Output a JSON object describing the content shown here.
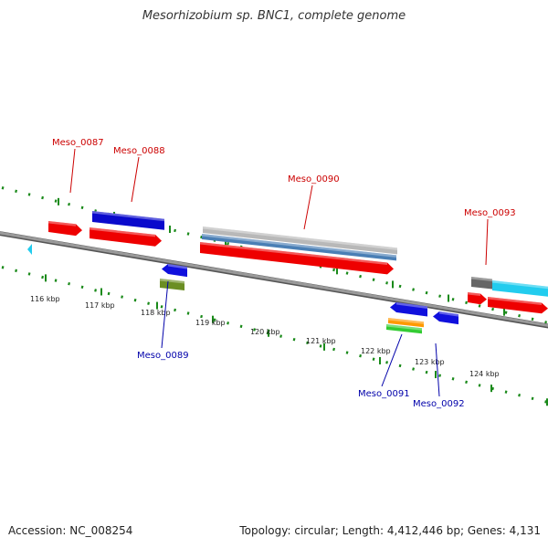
{
  "title": "Mesorhizobium sp. BNC1, complete genome",
  "footer": {
    "accession": "Accession: NC_008254",
    "summary": "Topology: circular; Length: 4,412,446 bp; Genes: 4,131"
  },
  "scale": {
    "unit": "kbp",
    "ticks": [
      "116 kbp",
      "117 kbp",
      "118 kbp",
      "119 kbp",
      "120 kbp",
      "121 kbp",
      "122 kbp",
      "123 kbp",
      "124 kbp"
    ]
  },
  "gene_labels": [
    {
      "name": "Meso_0087",
      "strand": "forward",
      "color": "#cc0000"
    },
    {
      "name": "Meso_0088",
      "strand": "forward",
      "color": "#cc0000"
    },
    {
      "name": "Meso_0090",
      "strand": "forward",
      "color": "#cc0000"
    },
    {
      "name": "Meso_0093",
      "strand": "forward",
      "color": "#cc0000"
    },
    {
      "name": "Meso_0089",
      "strand": "reverse",
      "color": "#0000aa"
    },
    {
      "name": "Meso_0091",
      "strand": "reverse",
      "color": "#0000aa"
    },
    {
      "name": "Meso_0092",
      "strand": "reverse",
      "color": "#0000aa"
    }
  ],
  "colors": {
    "backbone": "#808080",
    "cds_forward": "#ee0000",
    "cds_reverse": "#1010dd",
    "gene_blue": "#0a0acc",
    "mrna_steel": "#4a7fb5",
    "gene_gray": "#b8b8b8",
    "dark_gray": "#666666",
    "olive": "#6b8e23",
    "orange": "#ff9900",
    "green": "#33cc33",
    "cyan": "#22ccee",
    "tick_green": "#1a8a1a"
  }
}
